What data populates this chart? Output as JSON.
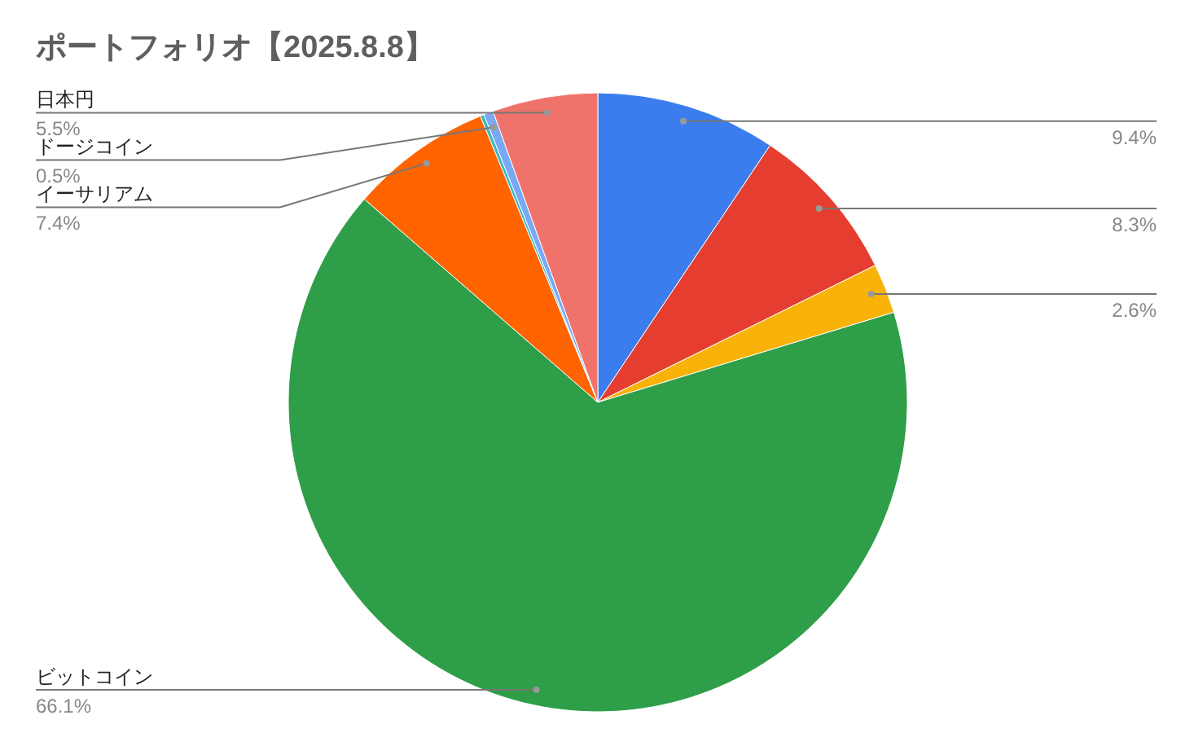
{
  "chart_data": {
    "type": "pie",
    "title": "ポートフォリオ【2025.8.8】",
    "categories": [
      null,
      null,
      null,
      "ビットコイン",
      "イーサリアム",
      null,
      "ドージコイン",
      "日本円"
    ],
    "values": [
      9.4,
      8.3,
      2.6,
      66.1,
      7.4,
      0.2,
      0.5,
      5.5
    ],
    "value_labels": [
      "9.4%",
      "8.3%",
      "2.6%",
      "66.1%",
      "7.4%",
      null,
      "0.5%",
      "5.5%"
    ],
    "colors": [
      "#3b7ded",
      "#e53e30",
      "#f9b207",
      "#2e9e48",
      "#ff6400",
      "#40b8c4",
      "#79a8f5",
      "#ef736a"
    ],
    "legend": false
  }
}
